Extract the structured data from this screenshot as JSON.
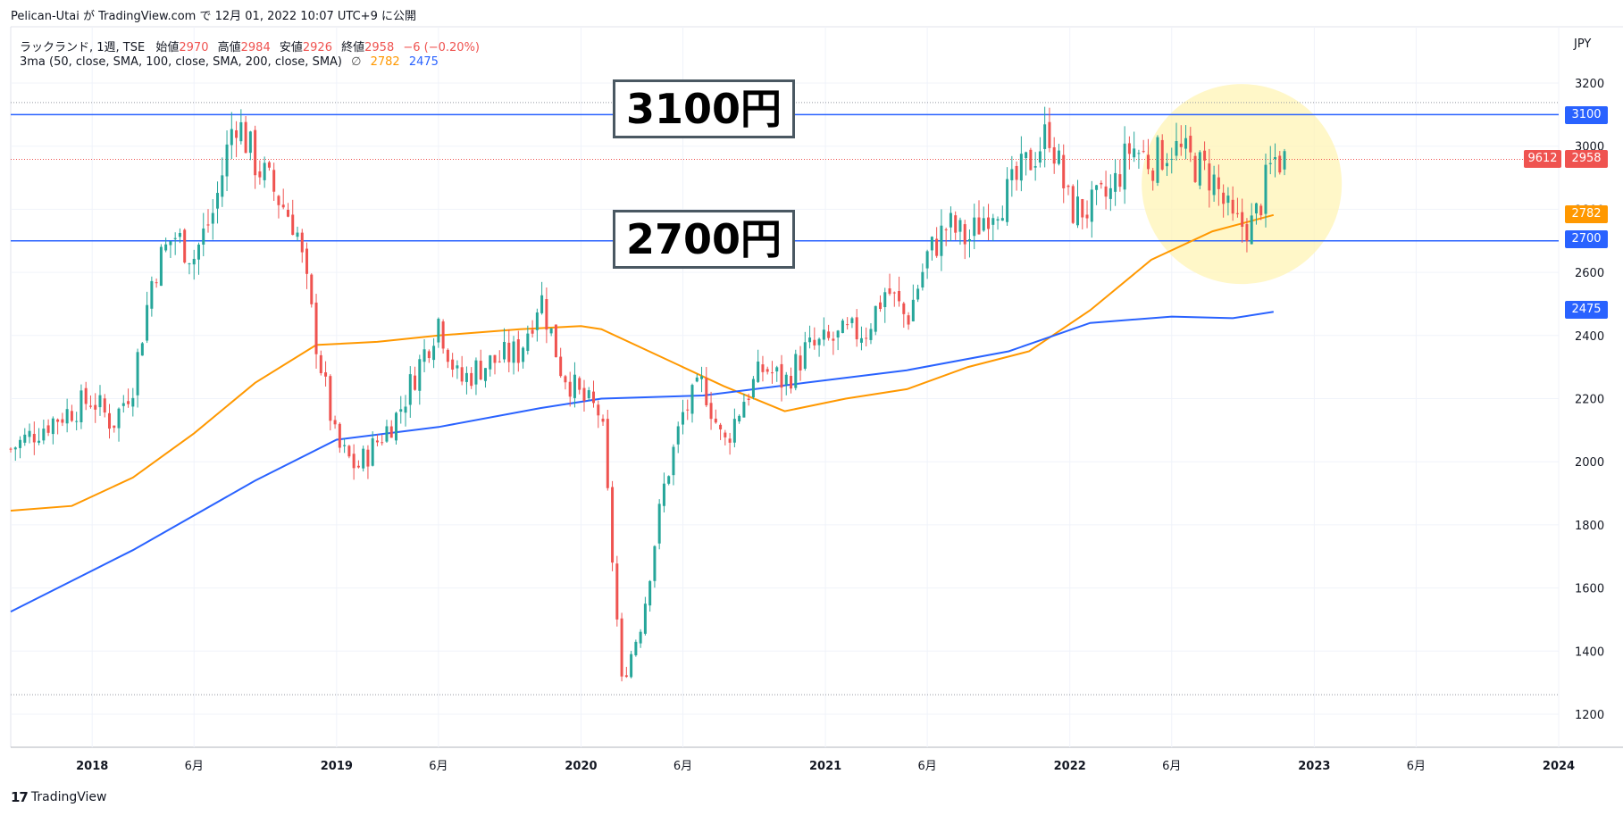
{
  "header": {
    "publish_line": "Pelican-Utai が TradingView.com で 12月 01, 2022 10:07 UTC+9 に公開"
  },
  "legend": {
    "symbol": "ラックランド, 1週, TSE",
    "open_label": "始値",
    "open": "2970",
    "high_label": "高値",
    "high": "2984",
    "low_label": "安値",
    "low": "2926",
    "close_label": "終値",
    "close": "2958",
    "change": "−6 (−0.20%)",
    "indicator": "3ma (50, close, SMA, 100, close, SMA, 200, close, SMA)",
    "indicator_symbol": "∅",
    "ma_orange_value": "2782",
    "ma_blue_value": "2475"
  },
  "callouts": {
    "upper": "3100円",
    "lower": "2700円"
  },
  "price_axis": {
    "currency": "JPY",
    "badges": {
      "level_3100": "3100",
      "last_price": "2958",
      "volume": "9612",
      "ma_orange": "2782",
      "level_2700": "2700",
      "ma_blue": "2475"
    }
  },
  "footer": {
    "logo_mark": "17",
    "brand": "TradingView"
  },
  "colors": {
    "up": "#26a69a",
    "down": "#ef5350",
    "ma100": "#ff9800",
    "ma200": "#2962ff",
    "hline": "#2962ff",
    "highlight": "#fff3b0"
  },
  "chart_data": {
    "type": "candlestick",
    "title": "ラックランド, 1週, TSE",
    "y_label": "JPY",
    "ylim": [
      1100,
      3300
    ],
    "y_ticks": [
      1200,
      1400,
      1600,
      1800,
      2000,
      2200,
      2400,
      2600,
      2800,
      3000,
      3200
    ],
    "x_ticks": [
      "2018",
      "6月",
      "2019",
      "6月",
      "2020",
      "6月",
      "2021",
      "6月",
      "2022",
      "6月",
      "2023",
      "6月",
      "2024"
    ],
    "x_range": [
      "2017-09",
      "2024-01"
    ],
    "horizontal_levels": [
      3100,
      2700
    ],
    "dotted_levels": [
      3138,
      2958,
      1262
    ],
    "price_path": [
      {
        "date": "2017-09",
        "close": 2040
      },
      {
        "date": "2017-11",
        "close": 2130
      },
      {
        "date": "2018-01",
        "close": 2200
      },
      {
        "date": "2018-02",
        "close": 2120
      },
      {
        "date": "2018-03",
        "close": 2250
      },
      {
        "date": "2018-04",
        "close": 2600
      },
      {
        "date": "2018-05",
        "close": 2720
      },
      {
        "date": "2018-06",
        "close": 2650
      },
      {
        "date": "2018-07",
        "close": 2800
      },
      {
        "date": "2018-08",
        "close": 3100
      },
      {
        "date": "2018-09",
        "close": 2950
      },
      {
        "date": "2018-11",
        "close": 2750
      },
      {
        "date": "2018-12",
        "close": 2380
      },
      {
        "date": "2019-01",
        "close": 2050
      },
      {
        "date": "2019-02",
        "close": 1980
      },
      {
        "date": "2019-04",
        "close": 2150
      },
      {
        "date": "2019-06",
        "close": 2450
      },
      {
        "date": "2019-07",
        "close": 2250
      },
      {
        "date": "2019-08",
        "close": 2300
      },
      {
        "date": "2019-10",
        "close": 2350
      },
      {
        "date": "2019-11",
        "close": 2530
      },
      {
        "date": "2019-12",
        "close": 2300
      },
      {
        "date": "2020-01",
        "close": 2200
      },
      {
        "date": "2020-02",
        "close": 2150
      },
      {
        "date": "2020-03",
        "close": 1300
      },
      {
        "date": "2020-04",
        "close": 1500
      },
      {
        "date": "2020-05",
        "close": 1900
      },
      {
        "date": "2020-06",
        "close": 2150
      },
      {
        "date": "2020-07",
        "close": 2250
      },
      {
        "date": "2020-08",
        "close": 2050
      },
      {
        "date": "2020-09",
        "close": 2200
      },
      {
        "date": "2020-10",
        "close": 2300
      },
      {
        "date": "2020-11",
        "close": 2250
      },
      {
        "date": "2020-12",
        "close": 2350
      },
      {
        "date": "2021-02",
        "close": 2400
      },
      {
        "date": "2021-03",
        "close": 2420
      },
      {
        "date": "2021-04",
        "close": 2550
      },
      {
        "date": "2021-05",
        "close": 2450
      },
      {
        "date": "2021-06",
        "close": 2650
      },
      {
        "date": "2021-07",
        "close": 2750
      },
      {
        "date": "2021-08",
        "close": 2700
      },
      {
        "date": "2021-09",
        "close": 2800
      },
      {
        "date": "2021-10",
        "close": 2850
      },
      {
        "date": "2021-11",
        "close": 2950
      },
      {
        "date": "2021-12",
        "close": 3050
      },
      {
        "date": "2022-01",
        "close": 2800
      },
      {
        "date": "2022-02",
        "close": 2800
      },
      {
        "date": "2022-03",
        "close": 2850
      },
      {
        "date": "2022-04",
        "close": 3000
      },
      {
        "date": "2022-05",
        "close": 2950
      },
      {
        "date": "2022-06",
        "close": 3000
      },
      {
        "date": "2022-07",
        "close": 2950
      },
      {
        "date": "2022-08",
        "close": 2900
      },
      {
        "date": "2022-09",
        "close": 2750
      },
      {
        "date": "2022-10",
        "close": 2750
      },
      {
        "date": "2022-11",
        "close": 2958
      }
    ],
    "series": [
      {
        "name": "SMA 100",
        "color": "#ff9800",
        "points": [
          {
            "date": "2017-09",
            "value": 1845
          },
          {
            "date": "2017-12",
            "value": 1860
          },
          {
            "date": "2018-03",
            "value": 1950
          },
          {
            "date": "2018-06",
            "value": 2090
          },
          {
            "date": "2018-09",
            "value": 2250
          },
          {
            "date": "2018-12",
            "value": 2370
          },
          {
            "date": "2019-03",
            "value": 2380
          },
          {
            "date": "2019-06",
            "value": 2400
          },
          {
            "date": "2019-10",
            "value": 2420
          },
          {
            "date": "2020-01",
            "value": 2430
          },
          {
            "date": "2020-02",
            "value": 2420
          },
          {
            "date": "2020-05",
            "value": 2330
          },
          {
            "date": "2020-08",
            "value": 2240
          },
          {
            "date": "2020-11",
            "value": 2160
          },
          {
            "date": "2021-02",
            "value": 2200
          },
          {
            "date": "2021-05",
            "value": 2230
          },
          {
            "date": "2021-08",
            "value": 2300
          },
          {
            "date": "2021-11",
            "value": 2350
          },
          {
            "date": "2022-02",
            "value": 2480
          },
          {
            "date": "2022-05",
            "value": 2640
          },
          {
            "date": "2022-08",
            "value": 2730
          },
          {
            "date": "2022-11",
            "value": 2782
          }
        ]
      },
      {
        "name": "SMA 200",
        "color": "#2962ff",
        "points": [
          {
            "date": "2017-09",
            "value": 1525
          },
          {
            "date": "2018-03",
            "value": 1720
          },
          {
            "date": "2018-09",
            "value": 1940
          },
          {
            "date": "2019-01",
            "value": 2070
          },
          {
            "date": "2019-06",
            "value": 2110
          },
          {
            "date": "2019-11",
            "value": 2170
          },
          {
            "date": "2020-02",
            "value": 2200
          },
          {
            "date": "2020-07",
            "value": 2210
          },
          {
            "date": "2020-12",
            "value": 2250
          },
          {
            "date": "2021-05",
            "value": 2290
          },
          {
            "date": "2021-10",
            "value": 2350
          },
          {
            "date": "2022-02",
            "value": 2440
          },
          {
            "date": "2022-06",
            "value": 2460
          },
          {
            "date": "2022-09",
            "value": 2455
          },
          {
            "date": "2022-11",
            "value": 2475
          }
        ]
      }
    ]
  }
}
